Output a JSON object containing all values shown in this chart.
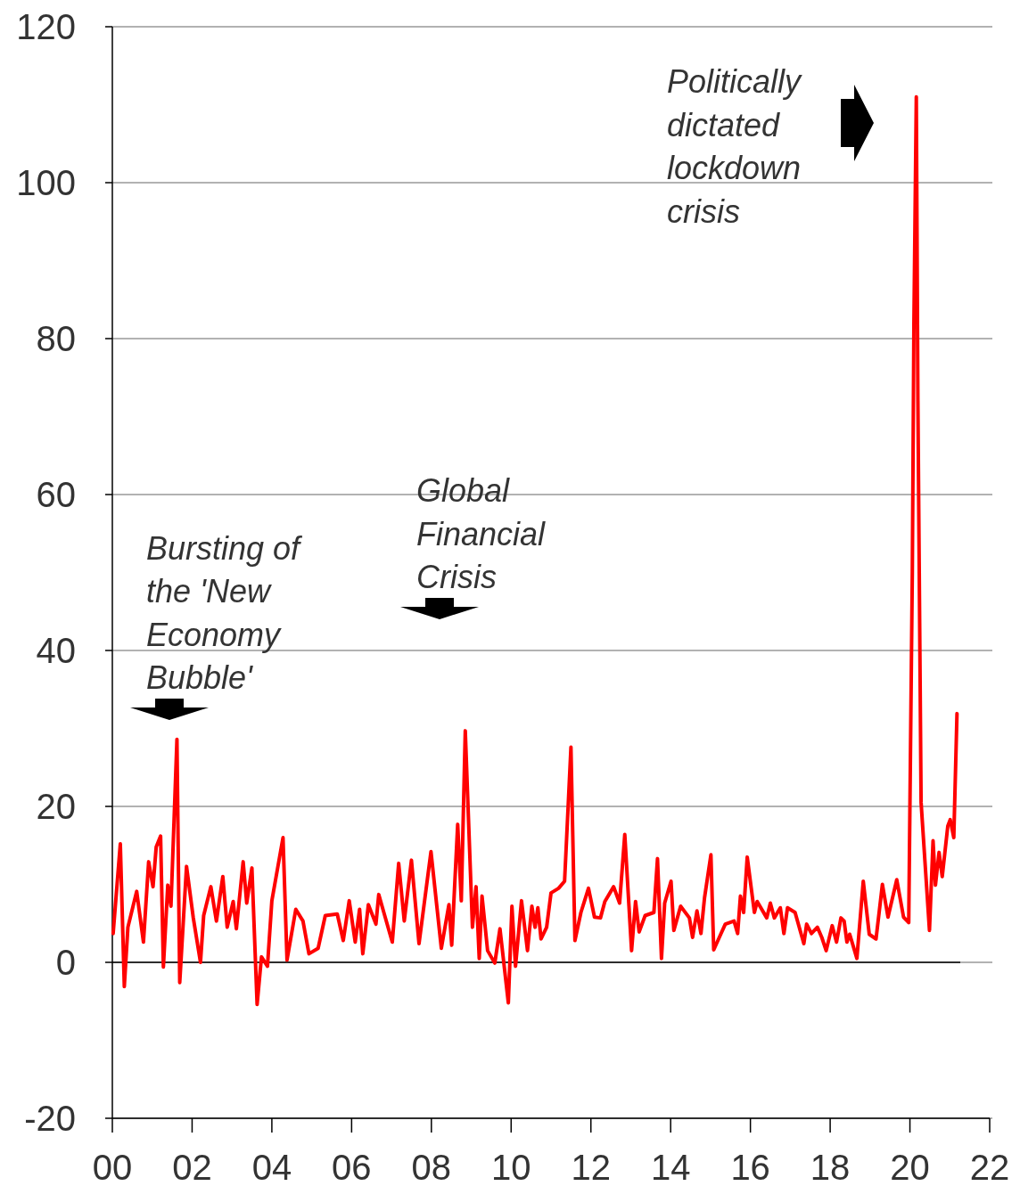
{
  "chart_data": {
    "type": "line",
    "xlim": [
      2000,
      2022
    ],
    "ylim": [
      -20,
      120
    ],
    "xticks": [
      {
        "value": 2000,
        "label": "00"
      },
      {
        "value": 2002,
        "label": "02"
      },
      {
        "value": 2004,
        "label": "04"
      },
      {
        "value": 2006,
        "label": "06"
      },
      {
        "value": 2008,
        "label": "08"
      },
      {
        "value": 2010,
        "label": "10"
      },
      {
        "value": 2012,
        "label": "12"
      },
      {
        "value": 2014,
        "label": "14"
      },
      {
        "value": 2016,
        "label": "16"
      },
      {
        "value": 2018,
        "label": "18"
      },
      {
        "value": 2020,
        "label": "20"
      },
      {
        "value": 2022,
        "label": "22"
      }
    ],
    "yticks": [
      -20,
      0,
      20,
      40,
      60,
      80,
      100,
      120
    ],
    "grid": "y",
    "marker": "none",
    "line_style": "solid",
    "ref_lines": [
      {
        "axis": "y",
        "value": 0,
        "color": "#000000"
      }
    ],
    "annotations": [
      "Bursting of\nthe 'New\nEconomy\nBubble'",
      "Global\nFinancial\nCrisis",
      "Politically\ndictated\nlockdown\ncrisis"
    ],
    "series": [
      {
        "color": "#ff0000",
        "x": [
          2000.02,
          2000.2,
          2000.3,
          2000.39,
          2000.61,
          2000.78,
          2000.91,
          2001.02,
          2001.1,
          2001.21,
          2001.28,
          2001.39,
          2001.47,
          2001.62,
          2001.69,
          2001.86,
          2002.03,
          2002.21,
          2002.29,
          2002.47,
          2002.61,
          2002.77,
          2002.88,
          2003.03,
          2003.11,
          2003.28,
          2003.37,
          2003.5,
          2003.63,
          2003.74,
          2003.89,
          2004.0,
          2004.28,
          2004.38,
          2004.6,
          2004.78,
          2004.93,
          2005.16,
          2005.34,
          2005.64,
          2005.79,
          2005.94,
          2006.09,
          2006.2,
          2006.28,
          2006.42,
          2006.61,
          2006.68,
          2006.83,
          2007.02,
          2007.18,
          2007.32,
          2007.5,
          2007.69,
          2007.99,
          2008.25,
          2008.44,
          2008.51,
          2008.66,
          2008.75,
          2008.85,
          2009.03,
          2009.12,
          2009.2,
          2009.27,
          2009.41,
          2009.59,
          2009.72,
          2009.93,
          2010.02,
          2010.11,
          2010.26,
          2010.41,
          2010.52,
          2010.6,
          2010.67,
          2010.75,
          2010.89,
          2011.0,
          2011.19,
          2011.34,
          2011.5,
          2011.6,
          2011.75,
          2011.94,
          2012.09,
          2012.24,
          2012.35,
          2012.57,
          2012.72,
          2012.85,
          2013.02,
          2013.12,
          2013.21,
          2013.36,
          2013.58,
          2013.67,
          2013.77,
          2013.85,
          2014.01,
          2014.08,
          2014.25,
          2014.47,
          2014.55,
          2014.66,
          2014.76,
          2014.85,
          2015.01,
          2015.08,
          2015.22,
          2015.37,
          2015.59,
          2015.68,
          2015.75,
          2015.83,
          2015.92,
          2016.1,
          2016.17,
          2016.41,
          2016.5,
          2016.6,
          2016.75,
          2016.84,
          2016.93,
          2017.12,
          2017.34,
          2017.41,
          2017.53,
          2017.68,
          2017.79,
          2017.9,
          2018.05,
          2018.16,
          2018.27,
          2018.35,
          2018.42,
          2018.49,
          2018.67,
          2018.83,
          2018.98,
          2019.15,
          2019.31,
          2019.45,
          2019.67,
          2019.84,
          2019.97,
          2020.06,
          2020.1,
          2020.16,
          2020.2,
          2020.28,
          2020.49,
          2020.58,
          2020.64,
          2020.73,
          2020.81,
          2020.95,
          2021.01,
          2021.1,
          2021.18
        ],
        "values": [
          3.7,
          15.2,
          -3.1,
          4.5,
          9.1,
          2.6,
          12.9,
          9.7,
          14.8,
          16.2,
          -0.6,
          9.9,
          7.2,
          28.6,
          -2.6,
          12.3,
          5.7,
          0,
          6.0,
          9.7,
          5.3,
          11.0,
          4.5,
          7.8,
          4.3,
          12.9,
          7.6,
          12.1,
          -5.4,
          0.7,
          -0.5,
          7.9,
          16.0,
          0.3,
          6.8,
          5.3,
          1.1,
          1.8,
          6.0,
          6.2,
          2.8,
          7.9,
          2.6,
          6.8,
          1.1,
          7.4,
          4.9,
          8.7,
          6.0,
          2.6,
          12.7,
          5.3,
          13.1,
          2.4,
          14.2,
          1.8,
          7.4,
          2.2,
          17.7,
          7.9,
          29.7,
          4.5,
          9.7,
          0.5,
          8.5,
          1.5,
          -0.1,
          4.3,
          -5.2,
          7.2,
          -0.5,
          7.9,
          1.5,
          7.2,
          4.5,
          7.0,
          3.0,
          4.5,
          8.9,
          9.5,
          10.4,
          27.6,
          2.8,
          6.4,
          9.5,
          5.8,
          5.7,
          7.8,
          9.7,
          7.6,
          16.4,
          1.5,
          7.8,
          3.9,
          6.0,
          6.4,
          13.3,
          0.5,
          7.6,
          10.4,
          4.1,
          7.2,
          5.7,
          3.2,
          6.6,
          3.7,
          8.3,
          13.8,
          1.6,
          3.2,
          4.9,
          5.3,
          3.7,
          8.5,
          6.4,
          13.5,
          6.4,
          7.8,
          5.7,
          7.6,
          5.7,
          7.0,
          3.7,
          7.0,
          6.4,
          2.4,
          4.9,
          3.7,
          4.5,
          3.2,
          1.5,
          4.7,
          2.6,
          5.7,
          5.3,
          2.6,
          3.6,
          0.5,
          10.4,
          3.6,
          3.0,
          10.0,
          5.8,
          10.6,
          5.8,
          5.1,
          50,
          82,
          111,
          72,
          20.5,
          4.1,
          15.6,
          9.9,
          14.1,
          11.0,
          17.5,
          18.3,
          16.0,
          31.9
        ]
      }
    ]
  }
}
